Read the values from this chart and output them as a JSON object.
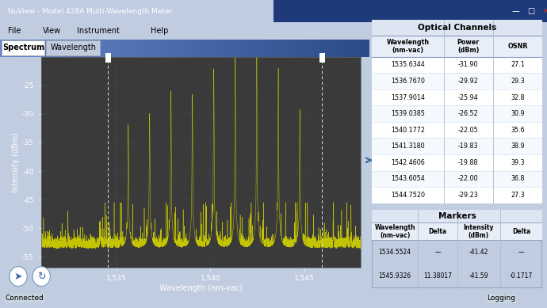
{
  "title": "NuView - Model 428A Multi-Wavelength Meter",
  "tab_spectrum": "Spectrum",
  "tab_wavelength": "Wavelength",
  "menu_items": [
    "File",
    "View",
    "Instrument",
    "Help"
  ],
  "plot_bg": "#3a3a3a",
  "plot_fg": "#cccc00",
  "xlabel": "Wavelength (nm-vac)",
  "ylabel": "Intensity (dBm)",
  "xlim": [
    1531.0,
    1548.0
  ],
  "ylim": [
    -57,
    -20
  ],
  "xticks": [
    1535,
    1540,
    1545
  ],
  "xtick_labels": [
    "1,535",
    "1,540",
    "1,545"
  ],
  "yticks": [
    -55,
    -50,
    -45,
    -40,
    -35,
    -30,
    -25
  ],
  "marker1_x": 1534.5524,
  "marker2_x": 1545.9326,
  "optical_channels_rows": [
    [
      1535.6344,
      -31.9,
      27.1
    ],
    [
      1536.767,
      -29.92,
      29.3
    ],
    [
      1537.9014,
      -25.94,
      32.8
    ],
    [
      1539.0385,
      -26.52,
      30.9
    ],
    [
      1540.1772,
      -22.05,
      35.6
    ],
    [
      1541.318,
      -19.83,
      38.9
    ],
    [
      1542.4606,
      -19.88,
      39.3
    ],
    [
      1543.6054,
      -22.0,
      36.8
    ],
    [
      1544.752,
      -29.23,
      27.3
    ]
  ],
  "markers_rows": [
    [
      "1534.5524",
      "—",
      "-41.42",
      "—"
    ],
    [
      "1545.9326",
      "11.38017",
      "-41.59",
      "-0.1717"
    ]
  ],
  "peaks": [
    [
      1535.6344,
      -31.9
    ],
    [
      1536.767,
      -29.92
    ],
    [
      1537.9014,
      -25.94
    ],
    [
      1539.0385,
      -26.52
    ],
    [
      1540.1772,
      -22.05
    ],
    [
      1541.318,
      -19.83
    ],
    [
      1542.4606,
      -19.88
    ],
    [
      1543.6054,
      -22.0
    ],
    [
      1544.752,
      -29.23
    ]
  ],
  "noise_floor": -53.5,
  "titlebar_color": "#3a5a9a",
  "titlebar_gradient_end": "#1a2a5a",
  "panel_bg": "#d6dff0",
  "tab_area_color": "#4a6aaa",
  "window_bg": "#c0cce0"
}
